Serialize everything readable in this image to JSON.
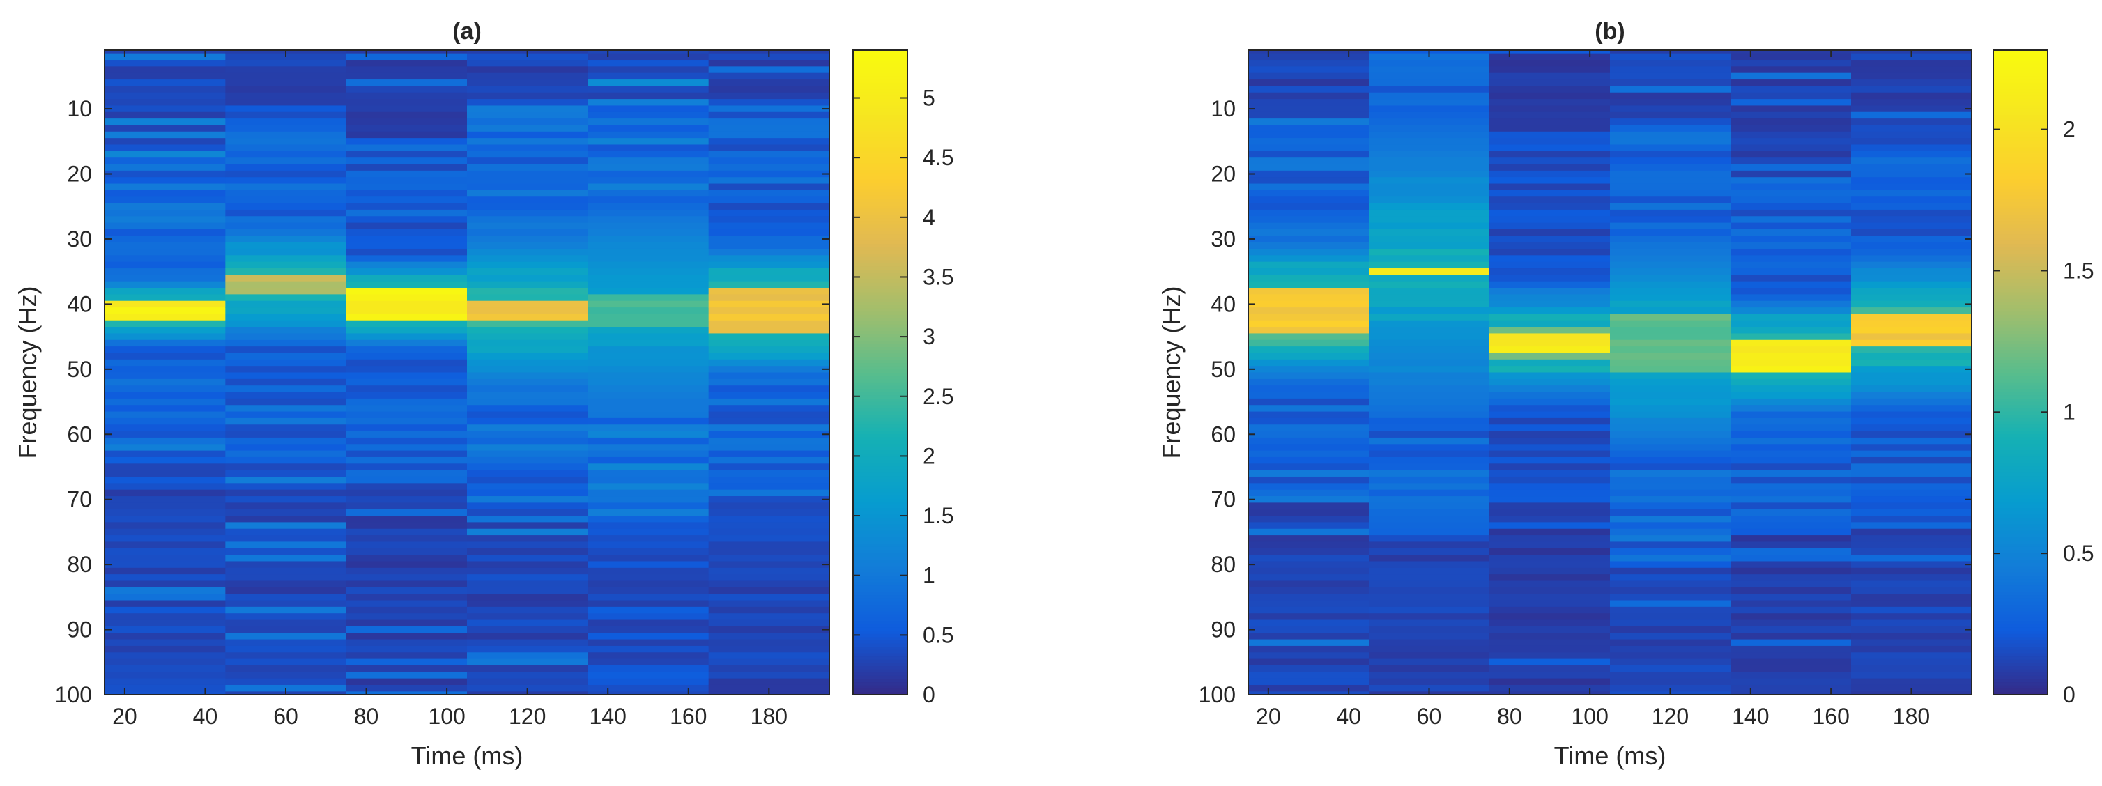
{
  "chart_data": [
    {
      "type": "heatmap",
      "title": "(a)",
      "xlabel": "Time (ms)",
      "ylabel": "Frequency (Hz)",
      "xlim": [
        15,
        195
      ],
      "ylim": [
        1,
        100
      ],
      "y_reversed": true,
      "x_ticks": [
        20,
        40,
        60,
        80,
        100,
        120,
        140,
        160,
        180
      ],
      "y_ticks": [
        10,
        20,
        30,
        40,
        50,
        60,
        70,
        80,
        90,
        100
      ],
      "time_bins": [
        30,
        60,
        90,
        120,
        150,
        180
      ],
      "frequency_bins": [
        1,
        100
      ],
      "colorbar": {
        "min": 0,
        "max": 5.4,
        "ticks": [
          0,
          0.5,
          1,
          1.5,
          2,
          2.5,
          3,
          3.5,
          4,
          4.5,
          5
        ],
        "tick_labels": [
          "0",
          "0.5",
          "1",
          "1.5",
          "2",
          "2.5",
          "3",
          "3.5",
          "4",
          "4.5",
          "5"
        ]
      },
      "columns": [
        {
          "time": 30,
          "peak_freq": 41,
          "peak_value": 5.4,
          "peak_width": 2,
          "shoulder_value": 3.0,
          "shoulder_width": 5,
          "low_band_value": 0.9,
          "background": 0.35,
          "seed": 11
        },
        {
          "time": 60,
          "peak_freq": 37,
          "peak_value": 3.6,
          "peak_width": 3,
          "shoulder_value": 2.6,
          "shoulder_width": 9,
          "low_band_value": 0.8,
          "background": 0.3,
          "seed": 23
        },
        {
          "time": 90,
          "peak_freq": 40,
          "peak_value": 5.3,
          "peak_width": 4,
          "shoulder_value": 3.2,
          "shoulder_width": 7,
          "low_band_value": 0.7,
          "background": 0.25,
          "seed": 37
        },
        {
          "time": 120,
          "peak_freq": 41,
          "peak_value": 4.4,
          "peak_width": 3,
          "shoulder_value": 2.6,
          "shoulder_width": 12,
          "low_band_value": 0.9,
          "background": 0.3,
          "seed": 41
        },
        {
          "time": 150,
          "peak_freq": 41,
          "peak_value": 2.7,
          "peak_width": 4,
          "shoulder_value": 2.0,
          "shoulder_width": 14,
          "low_band_value": 1.0,
          "background": 0.4,
          "seed": 53
        },
        {
          "time": 180,
          "peak_freq": 41,
          "peak_value": 4.3,
          "peak_width": 6,
          "shoulder_value": 3.1,
          "shoulder_width": 10,
          "low_band_value": 0.8,
          "background": 0.3,
          "seed": 67
        }
      ]
    },
    {
      "type": "heatmap",
      "title": "(b)",
      "xlabel": "Time (ms)",
      "ylabel": "Frequency (Hz)",
      "xlim": [
        15,
        195
      ],
      "ylim": [
        1,
        100
      ],
      "y_reversed": true,
      "x_ticks": [
        20,
        40,
        60,
        80,
        100,
        120,
        140,
        160,
        180
      ],
      "y_ticks": [
        10,
        20,
        30,
        40,
        50,
        60,
        70,
        80,
        90,
        100
      ],
      "time_bins": [
        30,
        60,
        90,
        120,
        150,
        180
      ],
      "frequency_bins": [
        1,
        100
      ],
      "colorbar": {
        "min": 0,
        "max": 2.28,
        "ticks": [
          0,
          0.5,
          1,
          1.5,
          2
        ],
        "tick_labels": [
          "0",
          "0.5",
          "1",
          "1.5",
          "2"
        ]
      },
      "columns": [
        {
          "time": 30,
          "peak_freq": 41,
          "peak_value": 1.85,
          "peak_width": 6,
          "shoulder_value": 1.3,
          "shoulder_width": 11,
          "low_band_value": 0.35,
          "background": 0.12,
          "seed": 71
        },
        {
          "time": 60,
          "peak_freq": 35,
          "peak_value": 2.1,
          "peak_width": 1,
          "shoulder_value": 1.0,
          "shoulder_width": 22,
          "low_band_value": 0.35,
          "background": 0.12,
          "seed": 83
        },
        {
          "time": 90,
          "peak_freq": 46,
          "peak_value": 2.25,
          "peak_width": 3,
          "shoulder_value": 1.3,
          "shoulder_width": 10,
          "low_band_value": 0.2,
          "background": 0.08,
          "seed": 97
        },
        {
          "time": 120,
          "peak_freq": 46,
          "peak_value": 1.2,
          "peak_width": 8,
          "shoulder_value": 0.95,
          "shoulder_width": 16,
          "low_band_value": 0.35,
          "background": 0.12,
          "seed": 101
        },
        {
          "time": 150,
          "peak_freq": 48,
          "peak_value": 2.2,
          "peak_width": 4,
          "shoulder_value": 1.4,
          "shoulder_width": 9,
          "low_band_value": 0.3,
          "background": 0.1,
          "seed": 113
        },
        {
          "time": 180,
          "peak_freq": 44,
          "peak_value": 1.85,
          "peak_width": 5,
          "shoulder_value": 1.2,
          "shoulder_width": 12,
          "low_band_value": 0.3,
          "background": 0.12,
          "seed": 127
        }
      ]
    }
  ]
}
